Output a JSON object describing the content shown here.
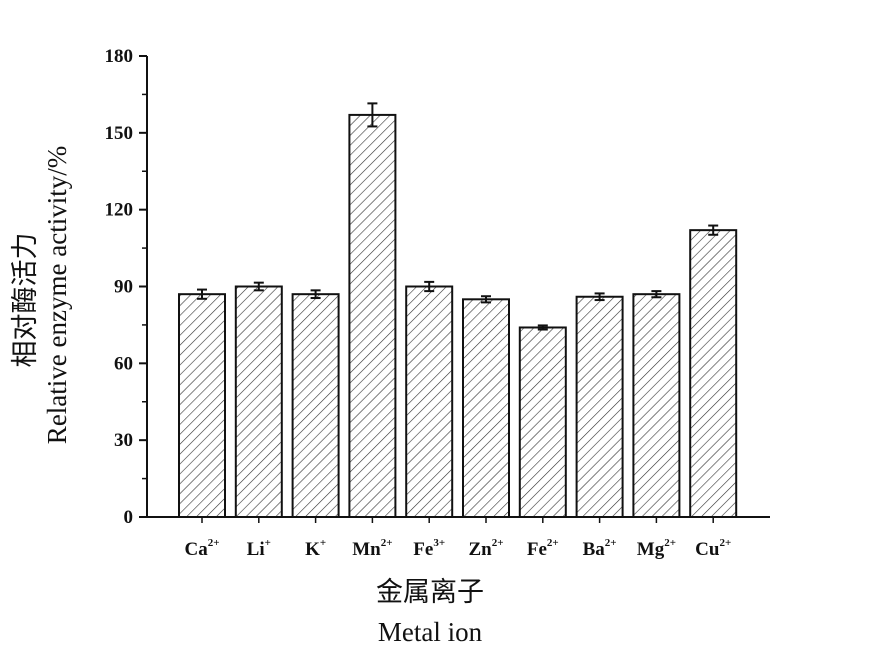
{
  "chart_data": {
    "type": "bar",
    "categories": [
      {
        "base": "Ca",
        "sup": "2+"
      },
      {
        "base": "Li",
        "sup": "+"
      },
      {
        "base": "K",
        "sup": "+"
      },
      {
        "base": "Mn",
        "sup": "2+"
      },
      {
        "base": "Fe",
        "sup": "3+"
      },
      {
        "base": "Zn",
        "sup": "2+"
      },
      {
        "base": "Fe",
        "sup": "2+"
      },
      {
        "base": "Ba",
        "sup": "2+"
      },
      {
        "base": "Mg",
        "sup": "2+"
      },
      {
        "base": "Cu",
        "sup": "2+"
      }
    ],
    "values": [
      87,
      90,
      87,
      157,
      90,
      85,
      74,
      86,
      87,
      112
    ],
    "errors": [
      1.8,
      1.5,
      1.5,
      4.5,
      1.8,
      1.2,
      0.8,
      1.3,
      1.2,
      1.8
    ],
    "ylim": [
      0,
      180
    ],
    "yticks": [
      0,
      30,
      60,
      90,
      120,
      150,
      180
    ],
    "ylabel_cn": "相对酶活力",
    "ylabel_en": "Relative  enzyme  activity/%",
    "xlabel_cn": "金属离子",
    "xlabel_en": "Metal  ion",
    "bar_fill": "hatched",
    "grid": false
  }
}
